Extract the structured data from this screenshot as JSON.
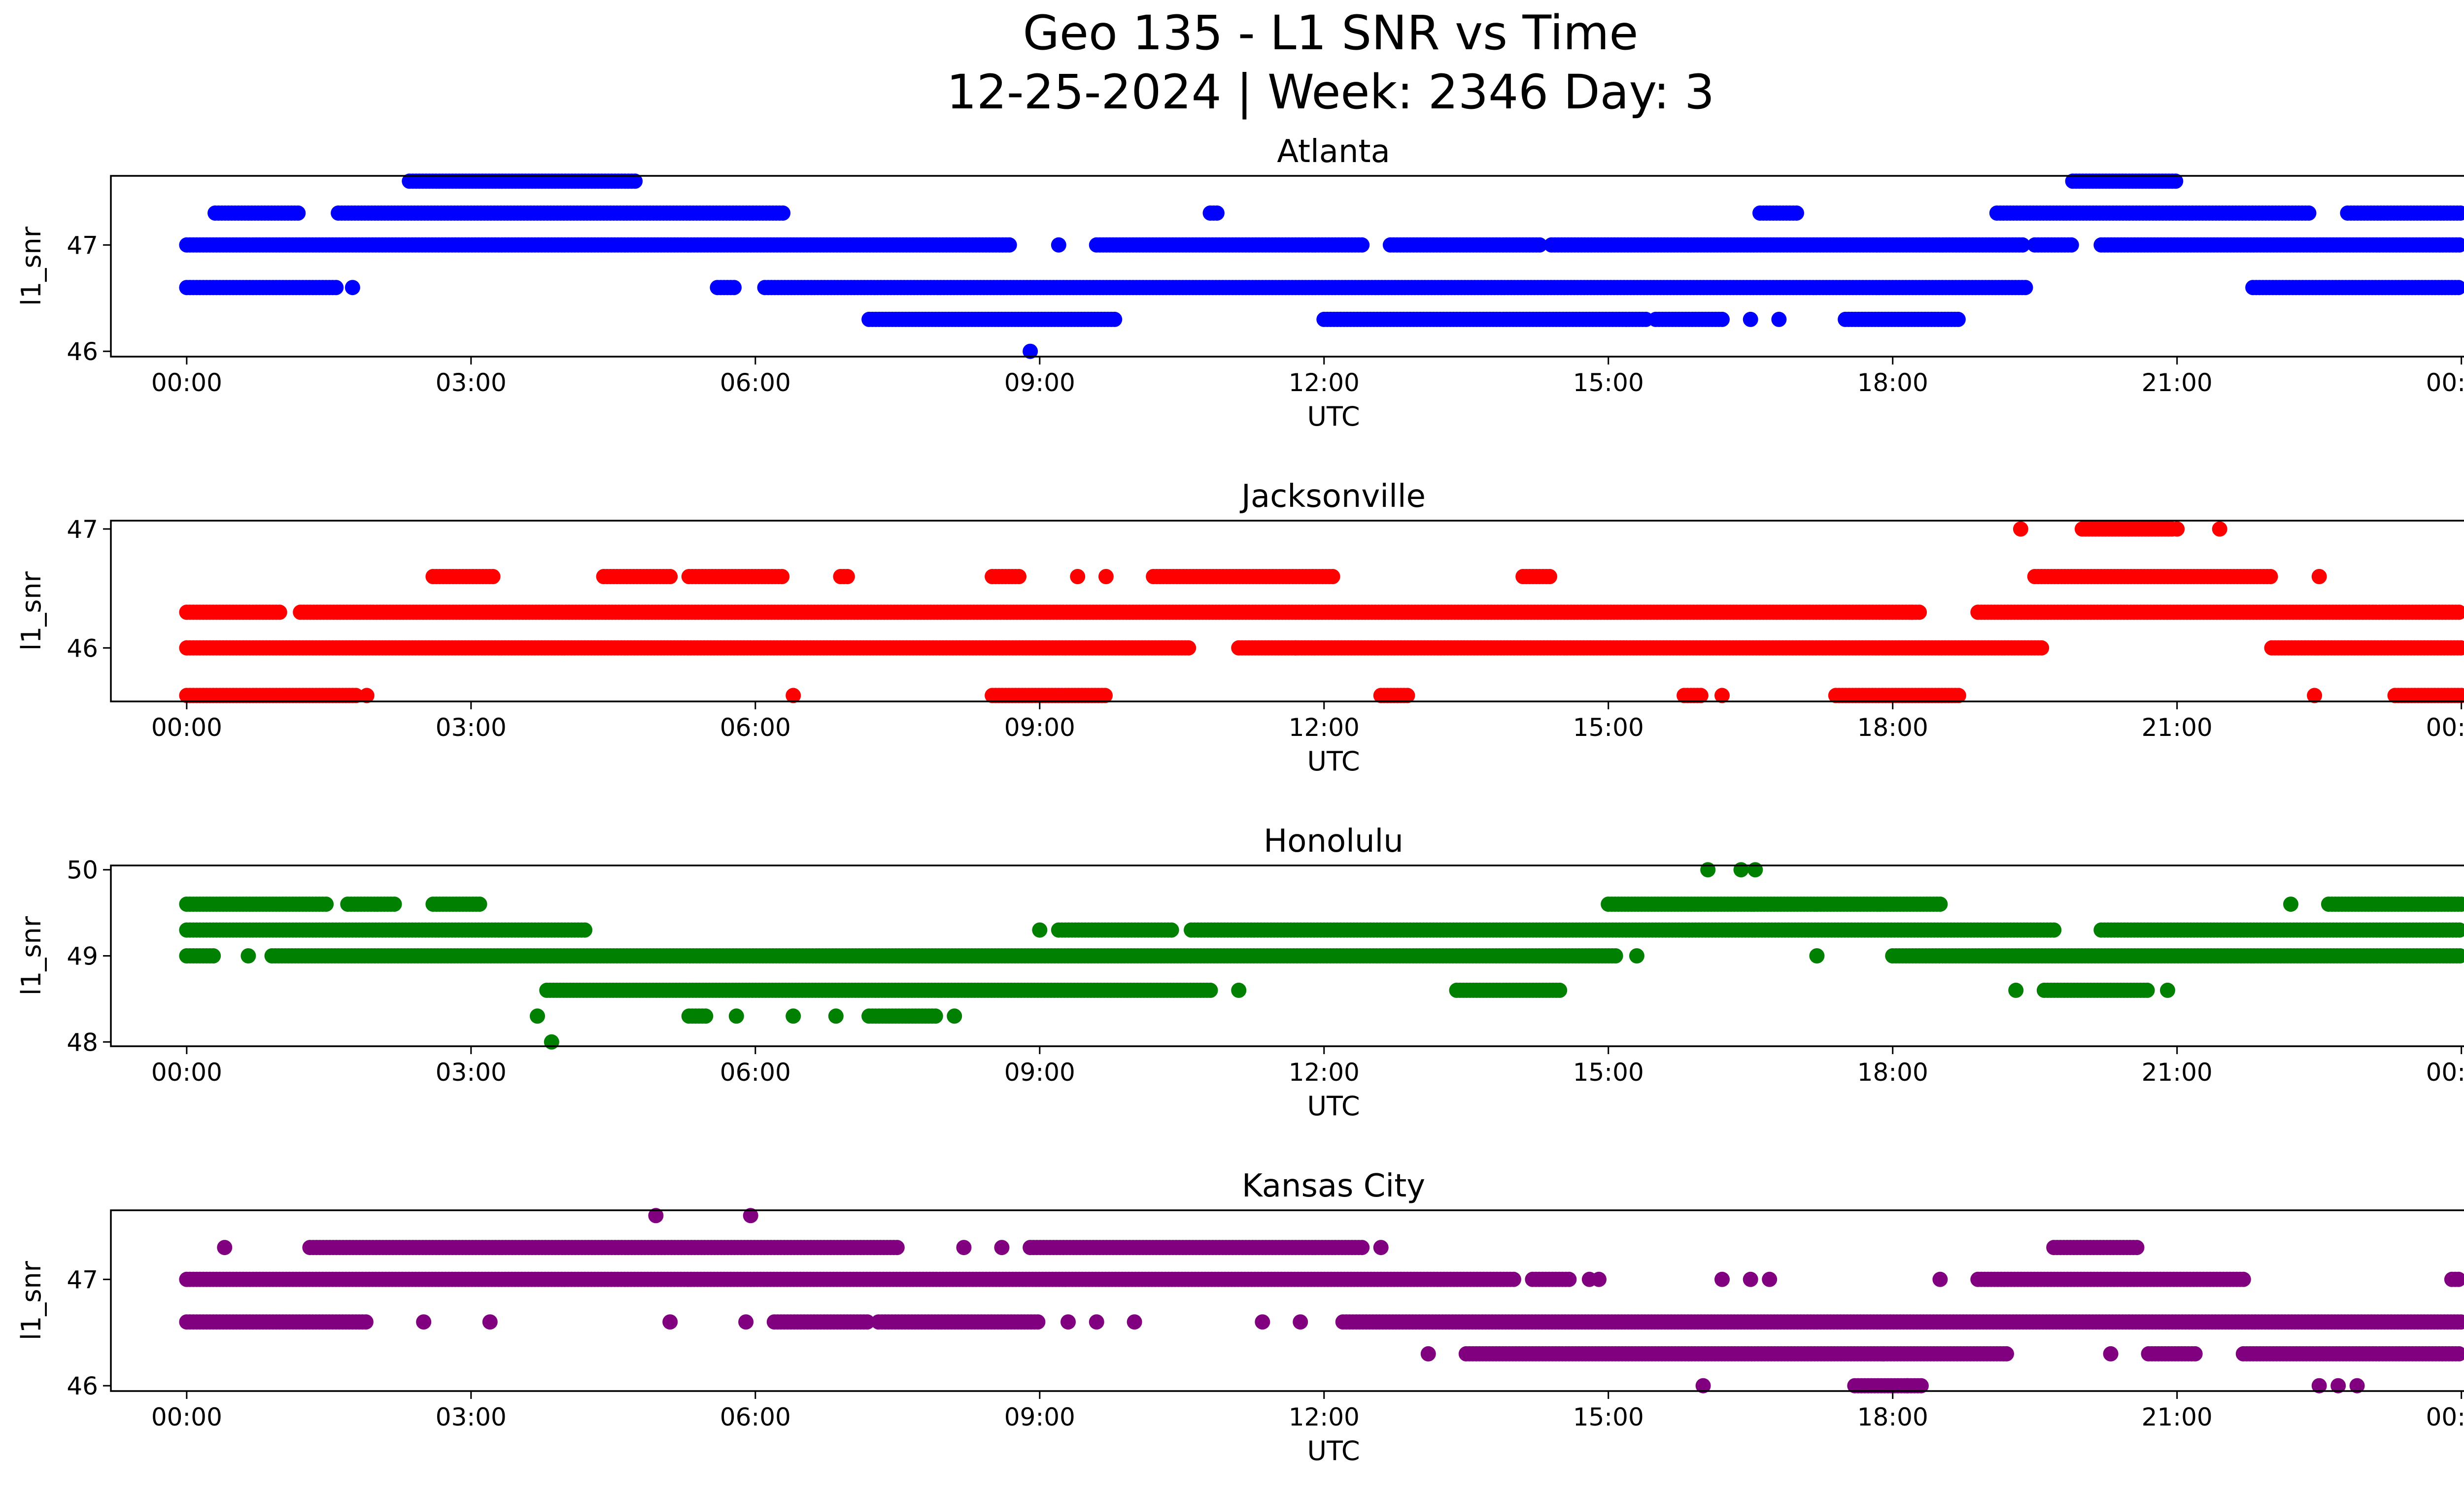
{
  "title_line1": "Geo 135 - L1 SNR vs Time",
  "title_line2": "12-25-2024 | Week: 2346 Day: 3",
  "chart_data": [
    {
      "type": "scatter",
      "title": "Atlanta",
      "color": "#0000ff",
      "xlabel": "UTC",
      "ylabel": "l1_snr",
      "xlim": [
        -0.8,
        25.0
      ],
      "ylim": [
        45.95,
        47.65
      ],
      "xticks": [
        0,
        3,
        6,
        9,
        12,
        15,
        18,
        21,
        24
      ],
      "xtick_labels": [
        "00:00",
        "03:00",
        "06:00",
        "09:00",
        "12:00",
        "15:00",
        "18:00",
        "21:00",
        "00:00"
      ],
      "yticks": [
        46,
        47
      ],
      "ytick_labels": [
        "46",
        "47"
      ],
      "runs": [
        {
          "y": 47.6,
          "ranges": [
            [
              2.35,
              4.75
            ],
            [
              19.9,
              21.0
            ]
          ]
        },
        {
          "y": 47.3,
          "ranges": [
            [
              0.3,
              1.2
            ],
            [
              1.6,
              6.3
            ],
            [
              10.8,
              10.9
            ],
            [
              16.6,
              17.0
            ],
            [
              19.1,
              22.4
            ],
            [
              22.8,
              24.0
            ]
          ]
        },
        {
          "y": 47.0,
          "ranges": [
            [
              0.0,
              8.7
            ],
            [
              9.6,
              12.4
            ],
            [
              12.7,
              14.3
            ],
            [
              14.4,
              19.4
            ],
            [
              19.5,
              19.9
            ],
            [
              20.2,
              24.0
            ]
          ]
        },
        {
          "y": 46.6,
          "ranges": [
            [
              0.0,
              1.6
            ],
            [
              5.6,
              5.8
            ],
            [
              6.1,
              19.4
            ],
            [
              21.8,
              24.0
            ]
          ]
        },
        {
          "y": 46.3,
          "ranges": [
            [
              7.2,
              9.8
            ],
            [
              12.0,
              15.4
            ],
            [
              15.5,
              16.2
            ],
            [
              17.5,
              18.7
            ]
          ]
        }
      ],
      "points": [
        [
          1.75,
          46.6
        ],
        [
          8.9,
          46.0
        ],
        [
          9.2,
          47.0
        ],
        [
          16.5,
          46.3
        ],
        [
          16.8,
          46.3
        ]
      ]
    },
    {
      "type": "scatter",
      "title": "Jacksonville",
      "color": "#ff0000",
      "xlabel": "UTC",
      "ylabel": "l1_snr",
      "xlim": [
        -0.8,
        25.0
      ],
      "ylim": [
        45.55,
        47.07
      ],
      "xticks": [
        0,
        3,
        6,
        9,
        12,
        15,
        18,
        21,
        24
      ],
      "xtick_labels": [
        "00:00",
        "03:00",
        "06:00",
        "09:00",
        "12:00",
        "15:00",
        "18:00",
        "21:00",
        "00:00"
      ],
      "yticks": [
        46,
        47
      ],
      "ytick_labels": [
        "46",
        "47"
      ],
      "runs": [
        {
          "y": 47.0,
          "ranges": [
            [
              20.0,
              20.95
            ]
          ]
        },
        {
          "y": 46.6,
          "ranges": [
            [
              2.6,
              3.25
            ],
            [
              4.4,
              5.1
            ],
            [
              5.3,
              6.3
            ],
            [
              6.9,
              7.0
            ],
            [
              8.5,
              8.8
            ],
            [
              10.2,
              12.1
            ],
            [
              14.1,
              14.4
            ],
            [
              19.5,
              22.0
            ]
          ]
        },
        {
          "y": 46.3,
          "ranges": [
            [
              0.0,
              1.0
            ],
            [
              1.2,
              18.3
            ],
            [
              18.9,
              24.0
            ]
          ]
        },
        {
          "y": 46.0,
          "ranges": [
            [
              0.0,
              10.6
            ],
            [
              11.1,
              19.6
            ],
            [
              22.0,
              24.0
            ]
          ]
        },
        {
          "y": 45.6,
          "ranges": [
            [
              0.0,
              1.8
            ],
            [
              8.5,
              9.7
            ],
            [
              12.6,
              12.9
            ],
            [
              15.8,
              16.0
            ],
            [
              17.4,
              18.7
            ],
            [
              23.3,
              24.0
            ]
          ]
        }
      ],
      "points": [
        [
          1.9,
          45.6
        ],
        [
          6.4,
          45.6
        ],
        [
          9.4,
          46.6
        ],
        [
          9.7,
          46.6
        ],
        [
          11.7,
          46.0
        ],
        [
          16.2,
          45.6
        ],
        [
          18.2,
          46.3
        ],
        [
          19.35,
          47.0
        ],
        [
          21.0,
          47.0
        ],
        [
          21.45,
          47.0
        ],
        [
          22.45,
          45.6
        ],
        [
          22.5,
          46.6
        ]
      ]
    },
    {
      "type": "scatter",
      "title": "Honolulu",
      "color": "#008000",
      "xlabel": "UTC",
      "ylabel": "l1_snr",
      "xlim": [
        -0.8,
        25.0
      ],
      "ylim": [
        47.95,
        50.05
      ],
      "xticks": [
        0,
        3,
        6,
        9,
        12,
        15,
        18,
        21,
        24
      ],
      "xtick_labels": [
        "00:00",
        "03:00",
        "06:00",
        "09:00",
        "12:00",
        "15:00",
        "18:00",
        "21:00",
        "00:00"
      ],
      "yticks": [
        48,
        49,
        50
      ],
      "ytick_labels": [
        "48",
        "49",
        "50"
      ],
      "runs": [
        {
          "y": 49.6,
          "ranges": [
            [
              0.0,
              1.5
            ],
            [
              1.7,
              2.2
            ],
            [
              2.6,
              3.1
            ],
            [
              15.0,
              18.5
            ],
            [
              22.6,
              24.0
            ]
          ]
        },
        {
          "y": 49.3,
          "ranges": [
            [
              0.0,
              4.2
            ],
            [
              9.2,
              10.4
            ],
            [
              10.6,
              19.7
            ],
            [
              20.2,
              24.0
            ]
          ]
        },
        {
          "y": 49.0,
          "ranges": [
            [
              0.0,
              0.3
            ],
            [
              0.9,
              15.1
            ],
            [
              18.0,
              24.0
            ]
          ]
        },
        {
          "y": 48.6,
          "ranges": [
            [
              3.8,
              10.8
            ],
            [
              13.4,
              14.5
            ],
            [
              19.6,
              20.7
            ]
          ]
        },
        {
          "y": 48.3,
          "ranges": [
            [
              5.3,
              5.5
            ],
            [
              7.2,
              7.9
            ]
          ]
        }
      ],
      "points": [
        [
          0.65,
          49.0
        ],
        [
          3.7,
          48.3
        ],
        [
          3.85,
          48.0
        ],
        [
          5.8,
          48.3
        ],
        [
          6.4,
          48.3
        ],
        [
          6.85,
          48.3
        ],
        [
          8.1,
          48.3
        ],
        [
          9.0,
          49.3
        ],
        [
          11.1,
          48.6
        ],
        [
          15.3,
          49.0
        ],
        [
          16.05,
          50.0
        ],
        [
          16.4,
          50.0
        ],
        [
          16.55,
          50.0
        ],
        [
          17.2,
          49.0
        ],
        [
          19.3,
          48.6
        ],
        [
          20.9,
          48.6
        ],
        [
          22.2,
          49.6
        ]
      ]
    },
    {
      "type": "scatter",
      "title": "Kansas City",
      "color": "#800080",
      "xlabel": "UTC",
      "ylabel": "l1_snr",
      "xlim": [
        -0.8,
        25.0
      ],
      "ylim": [
        45.95,
        47.65
      ],
      "xticks": [
        0,
        3,
        6,
        9,
        12,
        15,
        18,
        21,
        24
      ],
      "xtick_labels": [
        "00:00",
        "03:00",
        "06:00",
        "09:00",
        "12:00",
        "15:00",
        "18:00",
        "21:00",
        "00:00"
      ],
      "yticks": [
        46,
        47
      ],
      "ytick_labels": [
        "46",
        "47"
      ],
      "runs": [
        {
          "y": 47.3,
          "ranges": [
            [
              1.3,
              7.5
            ],
            [
              8.9,
              12.4
            ],
            [
              19.7,
              20.6
            ]
          ]
        },
        {
          "y": 47.0,
          "ranges": [
            [
              0.0,
              14.0
            ],
            [
              14.2,
              14.6
            ],
            [
              18.9,
              21.7
            ],
            [
              23.9,
              24.0
            ]
          ]
        },
        {
          "y": 46.6,
          "ranges": [
            [
              0.0,
              1.9
            ],
            [
              6.2,
              7.2
            ],
            [
              7.3,
              9.0
            ],
            [
              12.2,
              24.0
            ]
          ]
        },
        {
          "y": 46.3,
          "ranges": [
            [
              13.5,
              19.2
            ],
            [
              20.7,
              21.2
            ],
            [
              21.7,
              24.0
            ]
          ]
        },
        {
          "y": 46.0,
          "ranges": [
            [
              17.6,
              18.3
            ]
          ]
        }
      ],
      "points": [
        [
          0.4,
          47.3
        ],
        [
          2.5,
          46.6
        ],
        [
          3.2,
          46.6
        ],
        [
          4.95,
          47.6
        ],
        [
          5.1,
          46.6
        ],
        [
          5.95,
          47.6
        ],
        [
          5.9,
          46.6
        ],
        [
          8.2,
          47.3
        ],
        [
          8.6,
          47.3
        ],
        [
          9.3,
          46.6
        ],
        [
          9.6,
          46.6
        ],
        [
          10.0,
          46.6
        ],
        [
          11.35,
          46.6
        ],
        [
          11.75,
          46.6
        ],
        [
          12.6,
          47.3
        ],
        [
          13.1,
          46.3
        ],
        [
          14.8,
          47.0
        ],
        [
          14.9,
          47.0
        ],
        [
          16.0,
          46.0
        ],
        [
          16.2,
          47.0
        ],
        [
          16.5,
          47.0
        ],
        [
          16.7,
          47.0
        ],
        [
          17.9,
          46.3
        ],
        [
          18.15,
          46.0
        ],
        [
          18.5,
          47.0
        ],
        [
          19.2,
          46.3
        ],
        [
          20.3,
          46.3
        ],
        [
          22.5,
          46.0
        ],
        [
          22.7,
          46.0
        ],
        [
          22.9,
          46.0
        ]
      ]
    }
  ]
}
